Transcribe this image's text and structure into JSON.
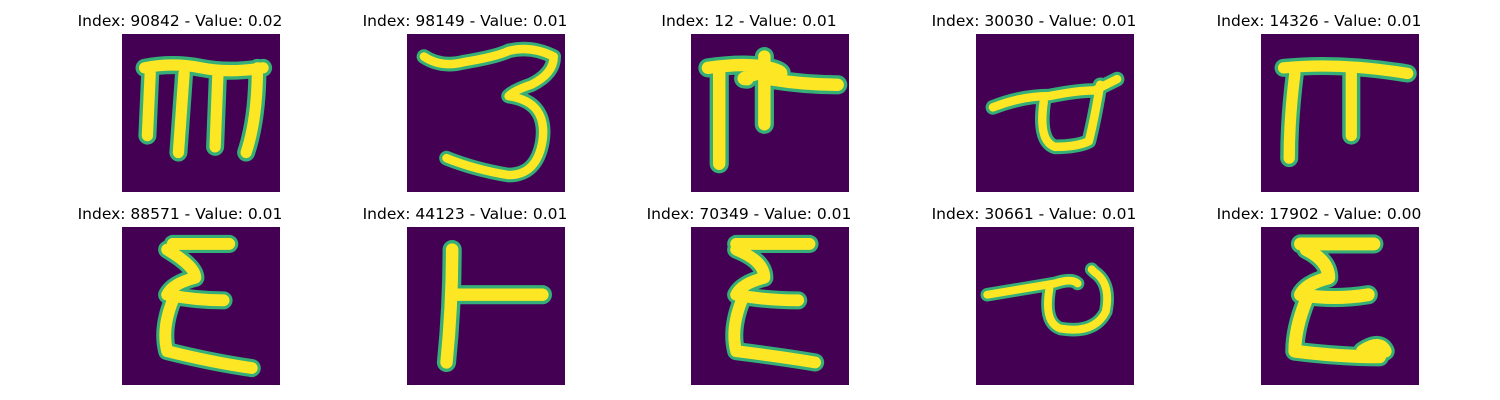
{
  "panels": [
    {
      "title": "Index: 90842 - Value: 0.02",
      "glyph": "glyph-ma-icon"
    },
    {
      "title": "Index: 98149 - Value: 0.01",
      "glyph": "glyph-three-icon"
    },
    {
      "title": "Index: 12 - Value: 0.01",
      "glyph": "glyph-pha-icon"
    },
    {
      "title": "Index: 30030 - Value: 0.01",
      "glyph": "glyph-loop-icon"
    },
    {
      "title": "Index: 14326 - Value: 0.01",
      "glyph": "glyph-pa-icon"
    },
    {
      "title": "Index: 88571 - Value: 0.01",
      "glyph": "glyph-epsilon-icon"
    },
    {
      "title": "Index: 44123 - Value: 0.01",
      "glyph": "glyph-tee-icon"
    },
    {
      "title": "Index: 70349 - Value: 0.01",
      "glyph": "glyph-epsilon-icon"
    },
    {
      "title": "Index: 30661 - Value: 0.01",
      "glyph": "glyph-loop-icon"
    },
    {
      "title": "Index: 17902 - Value: 0.00",
      "glyph": "glyph-epsilon-icon"
    }
  ],
  "colors": {
    "background": "#440154",
    "stroke": "#fde725",
    "edge": "#35b779"
  }
}
